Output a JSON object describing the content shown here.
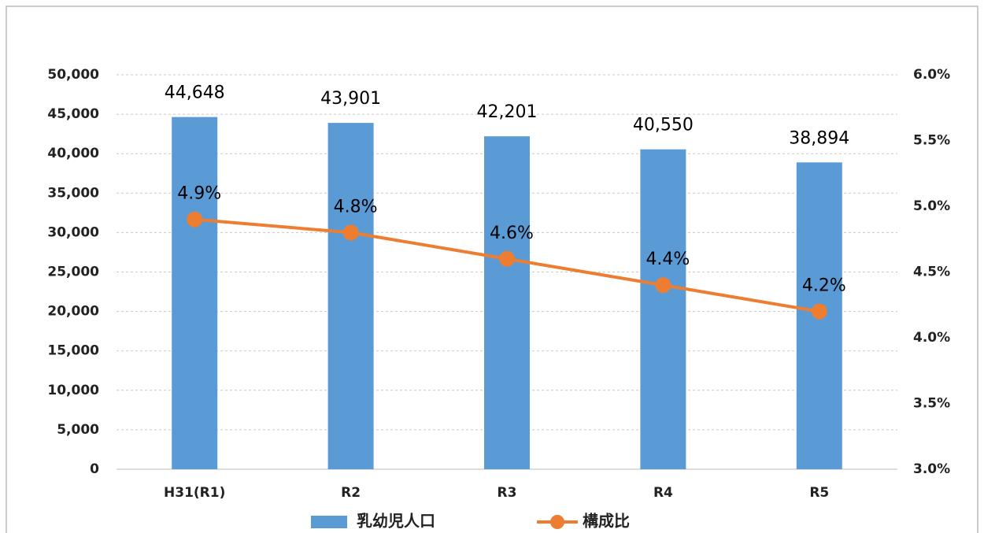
{
  "chart_data": {
    "type": "bar",
    "categories": [
      "H31(R1)",
      "R2",
      "R3",
      "R4",
      "R5"
    ],
    "series": [
      {
        "name": "乳幼児人口",
        "type": "bar",
        "color": "#5b9bd5",
        "values": [
          44648,
          43901,
          42201,
          40550,
          38894
        ],
        "value_labels": [
          "44,648",
          "43,901",
          "42,201",
          "40,550",
          "38,894"
        ]
      },
      {
        "name": "構成比",
        "type": "line",
        "axis": "y2",
        "color": "#ed7d31",
        "values": [
          4.9,
          4.8,
          4.6,
          4.4,
          4.2
        ],
        "value_labels": [
          "4.9%",
          "4.8%",
          "4.6%",
          "4.4%",
          "4.2%"
        ]
      }
    ],
    "ylim": [
      0,
      50000
    ],
    "yticks": [
      0,
      {
        "value": 5000,
        "label": "5,000"
      },
      {
        "value": 10000,
        "label": "10,000"
      },
      {
        "value": 15000,
        "label": "15,000"
      },
      {
        "value": 20000,
        "label": "20,000"
      },
      {
        "value": 25000,
        "label": "25,000"
      },
      {
        "value": 30000,
        "label": "30,000"
      },
      {
        "value": 35000,
        "label": "35,000"
      },
      {
        "value": 40000,
        "label": "40,000"
      },
      {
        "value": 45000,
        "label": "45,000"
      },
      {
        "value": 50000,
        "label": "50,000"
      }
    ],
    "y2lim": [
      3,
      6
    ],
    "y2ticks": [
      {
        "value": 3,
        "label": "3.0%"
      },
      {
        "value": 3.5,
        "label": "3.5%"
      },
      {
        "value": 4,
        "label": "4.0%"
      },
      {
        "value": 4.5,
        "label": "4.5%"
      },
      {
        "value": 5,
        "label": "5.0%"
      },
      {
        "value": 5.5,
        "label": "5.5%"
      },
      {
        "value": 6,
        "label": "6.0%"
      }
    ],
    "grid": true,
    "legend": "bottom"
  }
}
